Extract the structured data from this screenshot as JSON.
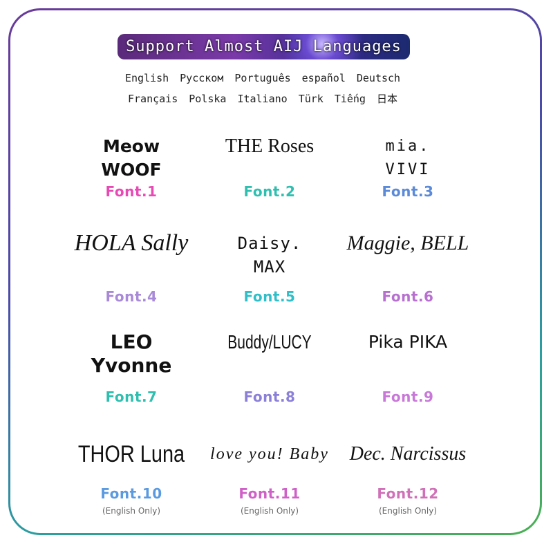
{
  "banner": "Support Almost AIJ Languages",
  "languages_row1": [
    "English",
    "Русском",
    "Português",
    "español",
    "Deutsch"
  ],
  "languages_row2": [
    "Français",
    "Polska",
    "Italiano",
    "Türk",
    "Tiếng",
    "日本"
  ],
  "fonts": [
    {
      "sample": "Meow\nWOOF",
      "label": "Font.1",
      "color": "#e84ab5"
    },
    {
      "sample": "THE Roses",
      "label": "Font.2",
      "color": "#2fbfb0"
    },
    {
      "sample": "mia.\nVIVI",
      "label": "Font.3",
      "color": "#5a8ad8"
    },
    {
      "sample": "HOLA Sally",
      "label": "Font.4",
      "color": "#a98ad8"
    },
    {
      "sample": "Daisy.\nMAX",
      "label": "Font.5",
      "color": "#2fbfc8"
    },
    {
      "sample": "Maggie, BELL",
      "label": "Font.6",
      "color": "#b870d0"
    },
    {
      "sample": "LEO\nYvonne",
      "label": "Font.7",
      "color": "#2fbfb0"
    },
    {
      "sample": "Buddy/LUCY",
      "label": "Font.8",
      "color": "#8a80d8"
    },
    {
      "sample": "Pika PIKA",
      "label": "Font.9",
      "color": "#c878d8"
    },
    {
      "sample": "THOR Luna",
      "label": "Font.10",
      "color": "#5a9ae0",
      "note": "(English Only)"
    },
    {
      "sample": "love you! Baby",
      "label": "Font.11",
      "color": "#d060c8",
      "note": "(English Only)"
    },
    {
      "sample": "Dec. Narcissus",
      "label": "Font.12",
      "color": "#d070b8",
      "note": "(English Only)"
    }
  ]
}
